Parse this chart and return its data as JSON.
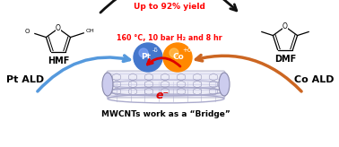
{
  "title_yield": "Up to 92% yield",
  "title_conditions": "160 °C, 10 bar H₂ and 8 hr",
  "label_hmf": "HMF",
  "label_dmf": "DMF",
  "label_pt_ald": "Pt ALD",
  "label_co_ald": "Co ALD",
  "label_bridge": "MWCNTs work as a “Bridge”",
  "label_pt": "Pt",
  "label_pt_charge": "-δ",
  "label_co": "Co",
  "label_co_charge": "+δ",
  "label_electron": "e⁻",
  "color_yield": "#ff0000",
  "color_conditions": "#ff0000",
  "color_pt_ball": "#4477cc",
  "color_co_ball": "#ff8800",
  "color_arrow_top": "#111111",
  "color_arrow_left": "#5599dd",
  "color_arrow_right": "#cc6622",
  "color_arrow_electron": "#dd0000",
  "color_bridge_label": "#000000",
  "color_pt_ald": "#000000",
  "color_co_ald": "#000000",
  "bg_color": "#ffffff"
}
